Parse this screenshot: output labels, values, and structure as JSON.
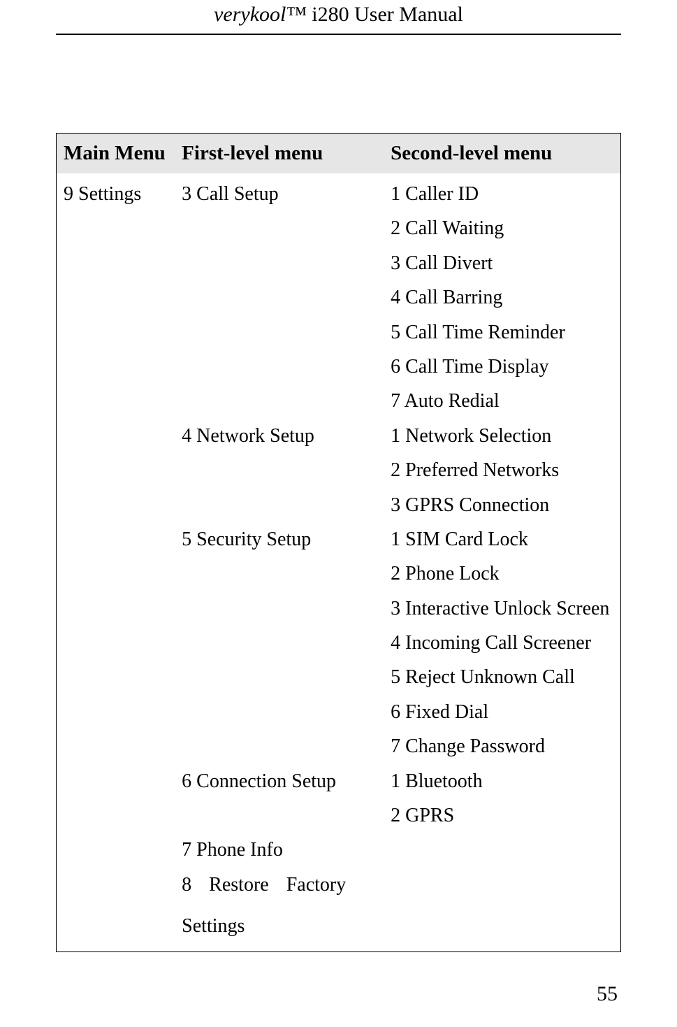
{
  "header": {
    "italic_part": "verykool™",
    "rest": " i280 User Manual"
  },
  "table": {
    "headers": {
      "main": "Main Menu",
      "first": "First-level menu",
      "second": "Second-level menu"
    },
    "main_menu": "9 Settings",
    "first_level": {
      "item1": "3 Call Setup",
      "item2": "4 Network Setup",
      "item3": "5 Security Setup",
      "item4": "6 Connection Setup",
      "item5": "7 Phone Info",
      "item6a": "8   Restore   Factory",
      "item6b": "Settings"
    },
    "second_level": {
      "s1": "1 Caller ID",
      "s2": "2 Call Waiting",
      "s3": "3 Call Divert",
      "s4": "4 Call Barring",
      "s5": "5 Call Time Reminder",
      "s6": "6 Call Time Display",
      "s7": "7 Auto Redial",
      "s8": "1 Network Selection",
      "s9": "2 Preferred Networks",
      "s10": "3 GPRS Connection",
      "s11": "1 SIM Card Lock",
      "s12": "2 Phone Lock",
      "s13": "3 Interactive Unlock Screen",
      "s14": "4 Incoming Call Screener",
      "s15": "5 Reject Unknown Call",
      "s16": "6 Fixed Dial",
      "s17": "7 Change Password",
      "s18": "1 Bluetooth",
      "s19": "2 GPRS"
    }
  },
  "page_number": "55"
}
